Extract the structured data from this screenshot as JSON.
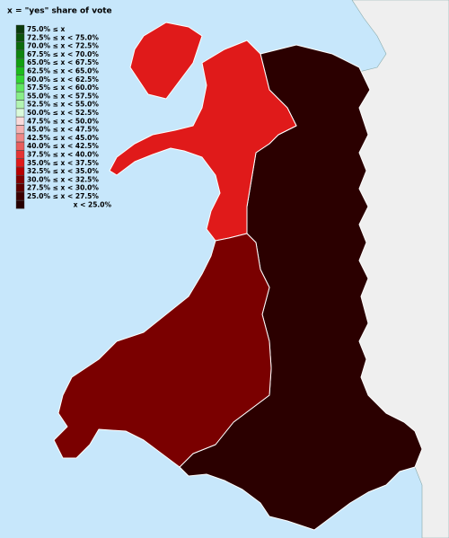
{
  "legend": {
    "title": "x = \"yes\" share of vote",
    "items": [
      {
        "label": "75.0% ≤ x",
        "color": "#0b3b0b"
      },
      {
        "label": "72.5% ≤ x < 75.0%",
        "color": "#0b520b"
      },
      {
        "label": "70.0% ≤ x < 72.5%",
        "color": "#0c6a0c"
      },
      {
        "label": "67.5% ≤ x < 70.0%",
        "color": "#0e840e"
      },
      {
        "label": "65.0% ≤ x < 67.5%",
        "color": "#11a011"
      },
      {
        "label": "62.5% ≤ x < 65.0%",
        "color": "#1cbc1c"
      },
      {
        "label": "60.0% ≤ x < 62.5%",
        "color": "#33d633"
      },
      {
        "label": "57.5% ≤ x < 60.0%",
        "color": "#5ee65e"
      },
      {
        "label": "55.0% ≤ x < 57.5%",
        "color": "#88ee88"
      },
      {
        "label": "52.5% ≤ x < 55.0%",
        "color": "#b2f4b2"
      },
      {
        "label": "50.0% ≤ x < 52.5%",
        "color": "#dafada"
      },
      {
        "label": "47.5% ≤ x < 50.0%",
        "color": "#fadada"
      },
      {
        "label": "45.0% ≤ x < 47.5%",
        "color": "#f4b2b2"
      },
      {
        "label": "42.5% ≤ x < 45.0%",
        "color": "#ee8888"
      },
      {
        "label": "40.0% ≤ x < 42.5%",
        "color": "#e85e5e"
      },
      {
        "label": "37.5% ≤ x < 40.0%",
        "color": "#e43434"
      },
      {
        "label": "35.0% ≤ x < 37.5%",
        "color": "#e01a1a"
      },
      {
        "label": "32.5% ≤ x < 35.0%",
        "color": "#b80000"
      },
      {
        "label": "30.0% ≤ x < 32.5%",
        "color": "#800000"
      },
      {
        "label": "27.5% ≤ x < 30.0%",
        "color": "#5c0000"
      },
      {
        "label": "25.0% ≤ x < 27.5%",
        "color": "#3c0000"
      },
      {
        "label": "x < 25.0%",
        "color": "#260000"
      }
    ]
  }
}
